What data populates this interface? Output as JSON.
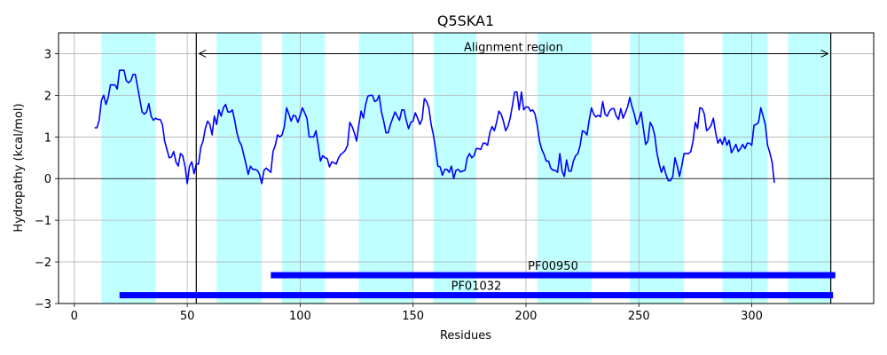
{
  "chart_data": {
    "type": "line",
    "title": "Q5SKA1",
    "xlabel": "Residues",
    "ylabel": "Hydropathy (kcal/mol)",
    "xlim": [
      -7,
      354
    ],
    "ylim": [
      -3,
      3.5
    ],
    "xticks": [
      0,
      50,
      100,
      150,
      200,
      250,
      300
    ],
    "yticks": [
      -3,
      -2,
      -1,
      0,
      1,
      2,
      3
    ],
    "grid": true,
    "colors": {
      "line": "#0000ff",
      "band": "#c0ffff",
      "domain_bar": "#0000ff",
      "grid": "#b0b0b0"
    },
    "bands": [
      [
        12,
        36
      ],
      [
        63,
        83
      ],
      [
        92,
        111
      ],
      [
        126,
        150
      ],
      [
        159,
        178
      ],
      [
        205,
        229
      ],
      [
        246,
        270
      ],
      [
        287,
        307
      ],
      [
        316,
        335
      ]
    ],
    "alignment_region": {
      "label": "Alignment region",
      "start": 54,
      "end": 335,
      "y": 3.0
    },
    "domains": [
      {
        "name": "PF00950",
        "start": 87,
        "end": 337,
        "y": -2.32
      },
      {
        "name": "PF01032",
        "start": 20,
        "end": 336,
        "y": -2.8
      }
    ],
    "series": [
      {
        "x_start": 9,
        "values": [
          1.22,
          1.22,
          1.4,
          1.88,
          2.0,
          1.78,
          1.95,
          2.25,
          2.25,
          2.25,
          2.15,
          2.6,
          2.6,
          2.6,
          2.35,
          2.3,
          2.35,
          2.5,
          2.5,
          2.2,
          1.9,
          1.6,
          1.55,
          1.6,
          1.8,
          1.5,
          1.4,
          1.45,
          1.42,
          1.42,
          1.3,
          0.9,
          0.7,
          0.5,
          0.52,
          0.65,
          0.4,
          0.3,
          0.6,
          0.55,
          0.3,
          -0.12,
          0.3,
          0.4,
          0.12,
          0.35,
          0.35,
          0.75,
          0.9,
          1.2,
          1.38,
          1.3,
          1.05,
          1.5,
          1.3,
          1.65,
          1.5,
          1.7,
          1.78,
          1.6,
          1.6,
          1.65,
          1.4,
          1.1,
          0.9,
          0.8,
          0.58,
          0.35,
          0.1,
          0.3,
          0.22,
          0.22,
          0.2,
          0.1,
          -0.12,
          0.2,
          0.25,
          0.2,
          0.15,
          0.65,
          0.8,
          1.05,
          1.0,
          1.05,
          1.25,
          1.7,
          1.55,
          1.38,
          1.52,
          1.5,
          1.35,
          1.52,
          1.7,
          1.58,
          1.45,
          1.0,
          1.0,
          1.0,
          1.15,
          0.8,
          0.42,
          0.55,
          0.5,
          0.48,
          0.28,
          0.4,
          0.38,
          0.35,
          0.5,
          0.58,
          0.62,
          0.68,
          0.8,
          1.35,
          1.25,
          1.1,
          0.9,
          1.3,
          1.62,
          1.45,
          1.78,
          1.98,
          2.0,
          2.0,
          1.85,
          1.88,
          2.0,
          1.6,
          1.38,
          1.1,
          1.1,
          1.3,
          1.45,
          1.6,
          1.5,
          1.4,
          1.65,
          1.65,
          1.4,
          1.2,
          1.35,
          1.38,
          1.58,
          1.45,
          1.3,
          1.42,
          1.92,
          1.85,
          1.7,
          1.3,
          1.05,
          0.7,
          0.3,
          0.28,
          0.08,
          0.22,
          0.22,
          0.15,
          0.3,
          0.0,
          0.2,
          0.22,
          0.16,
          0.18,
          0.2,
          0.5,
          0.6,
          0.5,
          0.55,
          0.72,
          0.72,
          0.7,
          0.85,
          0.85,
          0.8,
          1.1,
          1.25,
          1.15,
          1.35,
          1.62,
          1.55,
          1.38,
          1.15,
          1.25,
          1.45,
          1.75,
          2.08,
          2.08,
          1.65,
          2.08,
          1.65,
          1.72,
          1.72,
          1.62,
          1.65,
          1.55,
          1.28,
          0.9,
          0.7,
          0.58,
          0.42,
          0.42,
          0.25,
          0.2,
          0.2,
          0.15,
          0.6,
          0.18,
          0.05,
          0.45,
          0.18,
          0.18,
          0.42,
          0.55,
          0.6,
          0.8,
          1.15,
          1.12,
          1.05,
          1.4,
          1.7,
          1.55,
          1.48,
          1.52,
          1.48,
          1.85,
          1.55,
          1.5,
          1.62,
          1.68,
          1.68,
          1.5,
          1.42,
          1.68,
          1.45,
          1.58,
          1.72,
          1.95,
          1.72,
          1.55,
          1.3,
          1.4,
          1.6,
          1.2,
          0.82,
          0.9,
          1.35,
          1.25,
          1.05,
          0.62,
          0.35,
          0.15,
          0.3,
          0.1,
          -0.05,
          -0.05,
          0.05,
          0.5,
          0.3,
          0.05,
          0.3,
          0.6,
          0.6,
          0.6,
          0.65,
          0.9,
          1.35,
          1.2,
          1.7,
          1.68,
          1.55,
          1.15,
          1.2,
          1.28,
          1.45,
          1.1,
          0.85,
          0.95,
          0.82,
          1.0,
          0.8,
          0.92,
          0.62,
          0.72,
          0.82,
          0.65,
          0.72,
          0.82,
          0.72,
          0.85,
          0.85,
          0.8,
          1.28,
          1.3,
          1.35,
          1.7,
          1.5,
          1.3,
          0.8,
          0.62,
          0.4,
          -0.1
        ]
      }
    ]
  }
}
